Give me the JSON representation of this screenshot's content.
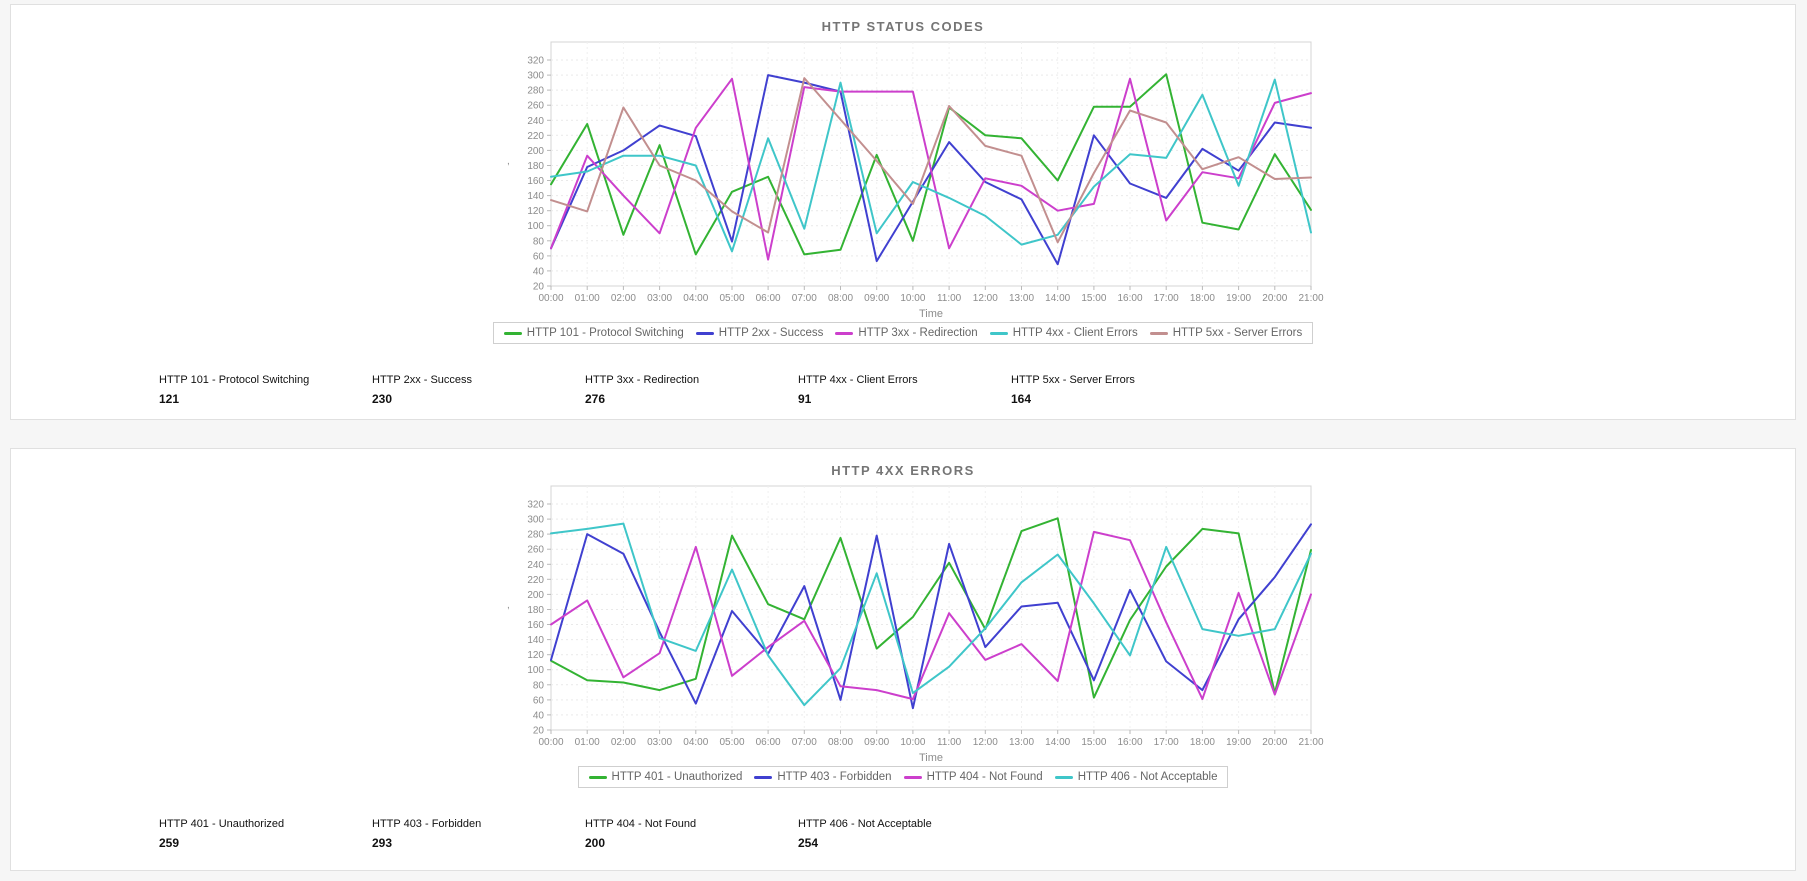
{
  "chart_data": [
    {
      "type": "line",
      "title": "HTTP STATUS CODES",
      "xlabel": "Time",
      "ylabel": ",",
      "ylim": [
        20,
        320
      ],
      "y_tick_step": 20,
      "grid": true,
      "legend_position": "bottom",
      "categories": [
        "00:00",
        "01:00",
        "02:00",
        "03:00",
        "04:00",
        "05:00",
        "06:00",
        "07:00",
        "08:00",
        "09:00",
        "10:00",
        "11:00",
        "12:00",
        "13:00",
        "14:00",
        "15:00",
        "16:00",
        "17:00",
        "18:00",
        "19:00",
        "20:00",
        "21:00"
      ],
      "series": [
        {
          "name": "HTTP 101 - Protocol Switching",
          "color": "#33b333",
          "values": [
            155,
            235,
            88,
            207,
            62,
            145,
            165,
            62,
            68,
            194,
            80,
            257,
            220,
            216,
            160,
            258,
            258,
            301,
            104,
            95,
            195,
            121
          ]
        },
        {
          "name": "HTTP 2xx - Success",
          "color": "#4040d0",
          "values": [
            70,
            178,
            200,
            233,
            219,
            79,
            300,
            290,
            278,
            53,
            132,
            211,
            158,
            135,
            49,
            220,
            156,
            137,
            202,
            173,
            237,
            230
          ]
        },
        {
          "name": "HTTP 3xx - Redirection",
          "color": "#cc3fcc",
          "values": [
            70,
            193,
            140,
            90,
            230,
            295,
            55,
            284,
            278,
            278,
            278,
            70,
            163,
            153,
            120,
            129,
            295,
            107,
            171,
            163,
            263,
            276
          ]
        },
        {
          "name": "HTTP 4xx - Client Errors",
          "color": "#3fc6c9",
          "values": [
            165,
            172,
            193,
            193,
            180,
            66,
            216,
            96,
            290,
            90,
            158,
            137,
            113,
            75,
            88,
            152,
            195,
            190,
            274,
            153,
            294,
            91
          ]
        },
        {
          "name": "HTTP 5xx - Server Errors",
          "color": "#c28f8f",
          "values": [
            134,
            119,
            257,
            180,
            160,
            119,
            91,
            296,
            241,
            186,
            129,
            259,
            206,
            193,
            78,
            170,
            253,
            237,
            175,
            191,
            162,
            164
          ]
        }
      ]
    },
    {
      "type": "line",
      "title": "HTTP 4XX ERRORS",
      "xlabel": "Time",
      "ylabel": ",",
      "ylim": [
        20,
        320
      ],
      "y_tick_step": 20,
      "grid": true,
      "legend_position": "bottom",
      "categories": [
        "00:00",
        "01:00",
        "02:00",
        "03:00",
        "04:00",
        "05:00",
        "06:00",
        "07:00",
        "08:00",
        "09:00",
        "10:00",
        "11:00",
        "12:00",
        "13:00",
        "14:00",
        "15:00",
        "16:00",
        "17:00",
        "18:00",
        "19:00",
        "20:00",
        "21:00"
      ],
      "series": [
        {
          "name": "HTTP 401 - Unauthorized",
          "color": "#33b333",
          "values": [
            112,
            86,
            83,
            73,
            88,
            278,
            187,
            167,
            275,
            128,
            170,
            242,
            154,
            284,
            301,
            63,
            166,
            237,
            287,
            281,
            69,
            259
          ]
        },
        {
          "name": "HTTP 403 - Forbidden",
          "color": "#4040d0",
          "values": [
            113,
            280,
            254,
            150,
            55,
            178,
            121,
            211,
            60,
            278,
            49,
            267,
            130,
            184,
            189,
            86,
            206,
            111,
            73,
            167,
            223,
            293
          ]
        },
        {
          "name": "HTTP 404 - Not Found",
          "color": "#cc3fcc",
          "values": [
            160,
            192,
            90,
            122,
            263,
            92,
            130,
            165,
            78,
            73,
            61,
            175,
            113,
            134,
            85,
            283,
            272,
            163,
            61,
            202,
            67,
            200
          ]
        },
        {
          "name": "HTTP 406 - Not Acceptable",
          "color": "#3fc6c9",
          "values": [
            281,
            287,
            294,
            142,
            125,
            233,
            119,
            53,
            102,
            228,
            69,
            104,
            155,
            216,
            253,
            188,
            119,
            263,
            154,
            145,
            154,
            254
          ]
        }
      ]
    }
  ],
  "panels": [
    {
      "stats": [
        {
          "label": "HTTP 101 - Protocol Switching",
          "value": "121"
        },
        {
          "label": "HTTP 2xx - Success",
          "value": "230"
        },
        {
          "label": "HTTP 3xx - Redirection",
          "value": "276"
        },
        {
          "label": "HTTP 4xx - Client Errors",
          "value": "91"
        },
        {
          "label": "HTTP 5xx - Server Errors",
          "value": "164"
        }
      ]
    },
    {
      "stats": [
        {
          "label": "HTTP 401 - Unauthorized",
          "value": "259"
        },
        {
          "label": "HTTP 403 - Forbidden",
          "value": "293"
        },
        {
          "label": "HTTP 404 - Not Found",
          "value": "200"
        },
        {
          "label": "HTTP 406 - Not Acceptable",
          "value": "254"
        }
      ]
    }
  ]
}
